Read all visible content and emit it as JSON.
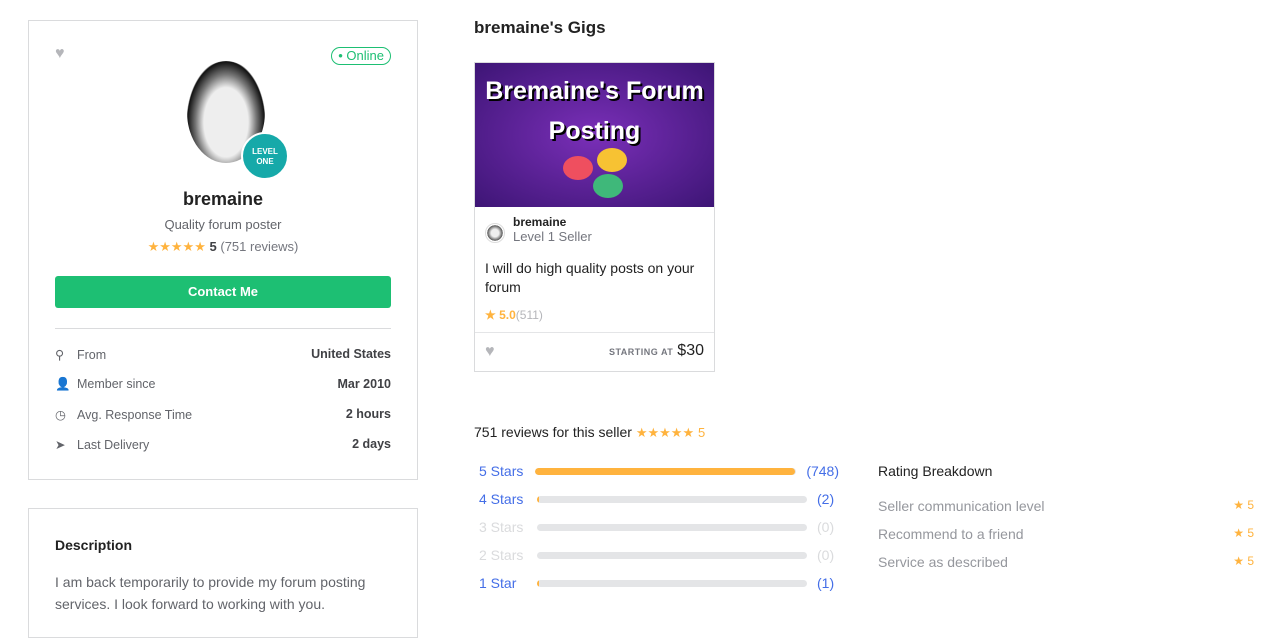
{
  "profile": {
    "online": "• Online",
    "badge": "LEVEL ONE",
    "username": "bremaine",
    "tagline": "Quality forum poster",
    "rating": "5",
    "reviews": "(751 reviews)",
    "contact": "Contact Me",
    "details": [
      {
        "icon": "location-pin-icon",
        "label": "From",
        "value": "United States"
      },
      {
        "icon": "user-icon",
        "label": "Member since",
        "value": "Mar 2010"
      },
      {
        "icon": "clock-icon",
        "label": "Avg. Response Time",
        "value": "2 hours"
      },
      {
        "icon": "paper-plane-icon",
        "label": "Last Delivery",
        "value": "2 days"
      }
    ]
  },
  "description": {
    "title": "Description",
    "text": "I am back temporarily to provide my forum posting services. I look forward to working with you."
  },
  "gigs": {
    "title": "bremaine's Gigs",
    "image_text": "Bremaine's Forum Posting",
    "seller": "bremaine",
    "level": "Level 1 Seller",
    "gig_title": "I will do high quality posts on your forum",
    "rating": "5.0",
    "count": "(511)",
    "starting": "STARTING AT",
    "price": "$30"
  },
  "reviews": {
    "title": "751 reviews for this seller",
    "rating": "5",
    "bars": [
      {
        "label": "5 Stars",
        "count": "(748)",
        "value": 748
      },
      {
        "label": "4 Stars",
        "count": "(2)",
        "value": 2
      },
      {
        "label": "3 Stars",
        "count": "(0)",
        "value": 0
      },
      {
        "label": "2 Stars",
        "count": "(0)",
        "value": 0
      },
      {
        "label": "1 Star",
        "count": "(1)",
        "value": 1
      }
    ],
    "total": 751,
    "breakdown_title": "Rating Breakdown",
    "breakdown": [
      {
        "label": "Seller communication level",
        "value": "5"
      },
      {
        "label": "Recommend to a friend",
        "value": "5"
      },
      {
        "label": "Service as described",
        "value": "5"
      }
    ]
  },
  "colors": {
    "accent": "#1dbf73",
    "star": "#ffb33e",
    "link": "#446ee7"
  }
}
